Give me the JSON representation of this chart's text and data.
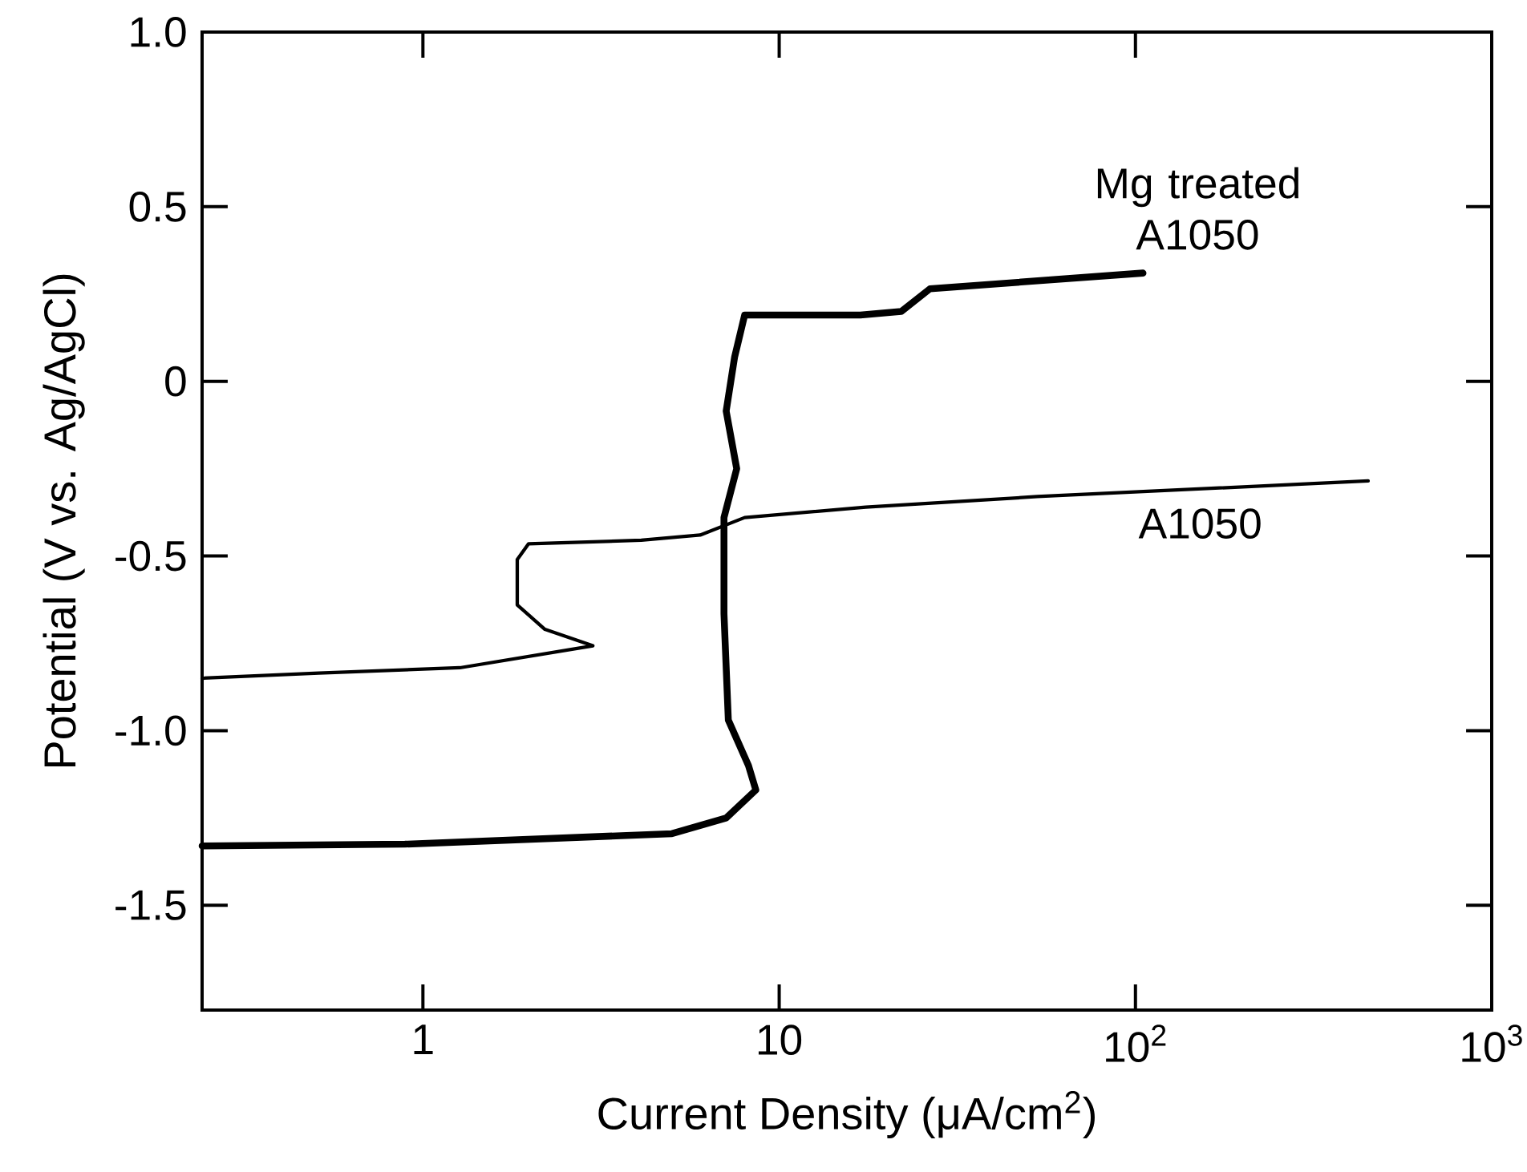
{
  "chart_data": {
    "type": "line",
    "xlabel": "Current Density (μA/cm$^{2}$)",
    "ylabel": "Potential (V vs. Ag/AgCl)",
    "log": "x",
    "grid": false,
    "legend": false,
    "marker": "none",
    "line_style": "solid",
    "xlim": [
      0.24,
      1000
    ],
    "ylim": [
      -1.8,
      1.0
    ],
    "xticks": [
      {
        "value": 1,
        "label": "1"
      },
      {
        "value": 10,
        "label": "10"
      },
      {
        "value": 100,
        "label": "10$^{2}$"
      },
      {
        "value": 1000,
        "label": "10$^{3}$"
      }
    ],
    "yticks": [
      {
        "value": -1.5,
        "label": "-1.5"
      },
      {
        "value": -1.0,
        "label": "-1.0"
      },
      {
        "value": -0.5,
        "label": "-0.5"
      },
      {
        "value": 0,
        "label": "0"
      },
      {
        "value": 0.5,
        "label": "0.5"
      },
      {
        "value": 1.0,
        "label": "1.0"
      }
    ],
    "series": [
      {
        "name": "Mg treated A1050",
        "color": "#000000",
        "x": [
          0.24,
          0.89,
          5.0,
          7.1,
          8.6,
          8.2,
          7.2,
          7.0,
          7.0,
          7.6,
          7.1,
          7.5,
          8.0,
          16.9,
          22,
          26.5,
          105
        ],
        "values": [
          -1.33,
          -1.325,
          -1.295,
          -1.25,
          -1.17,
          -1.1,
          -0.97,
          -0.665,
          -0.39,
          -0.25,
          -0.085,
          0.07,
          0.19,
          0.19,
          0.2,
          0.265,
          0.31
        ]
      },
      {
        "name": "A1050",
        "color": "#000000",
        "x": [
          0.24,
          0.51,
          1.27,
          3.0,
          2.2,
          1.84,
          1.84,
          1.98,
          4.1,
          6.0,
          8.0,
          17.5,
          53,
          450
        ],
        "values": [
          -0.85,
          -0.835,
          -0.82,
          -0.757,
          -0.71,
          -0.64,
          -0.51,
          -0.465,
          -0.455,
          -0.44,
          -0.39,
          -0.36,
          -0.33,
          -0.285
        ]
      }
    ]
  }
}
